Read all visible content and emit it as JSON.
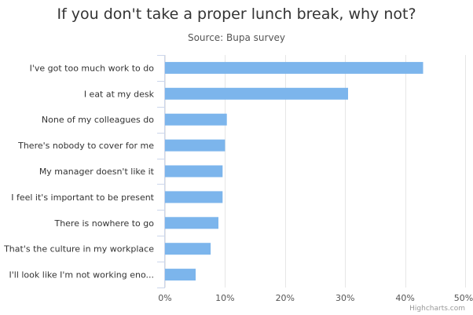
{
  "chart_data": {
    "type": "bar",
    "orientation": "horizontal",
    "title": "If you don't take a proper lunch break, why not?",
    "subtitle": "Source: Bupa survey",
    "categories": [
      "I've got too much work to do",
      "I eat at my desk",
      "None of my colleagues do",
      "There's nobody to cover for me",
      "My manager doesn't like it",
      "I feel it's important to be present",
      "There is nowhere to go",
      "That's the culture in my workplace",
      "I'll look like I'm not working eno..."
    ],
    "values": [
      43,
      30.5,
      10.3,
      10,
      9.6,
      9.6,
      8.9,
      7.6,
      5.1
    ],
    "xlim": [
      0,
      50
    ],
    "ticks": [
      0,
      10,
      20,
      30,
      40,
      50
    ],
    "tick_labels": [
      "0%",
      "10%",
      "20%",
      "30%",
      "40%",
      "50%"
    ],
    "grid": true,
    "bar_color": "#7cb5ec",
    "grid_color": "#e6e6e6"
  },
  "credits": "Highcharts.com"
}
